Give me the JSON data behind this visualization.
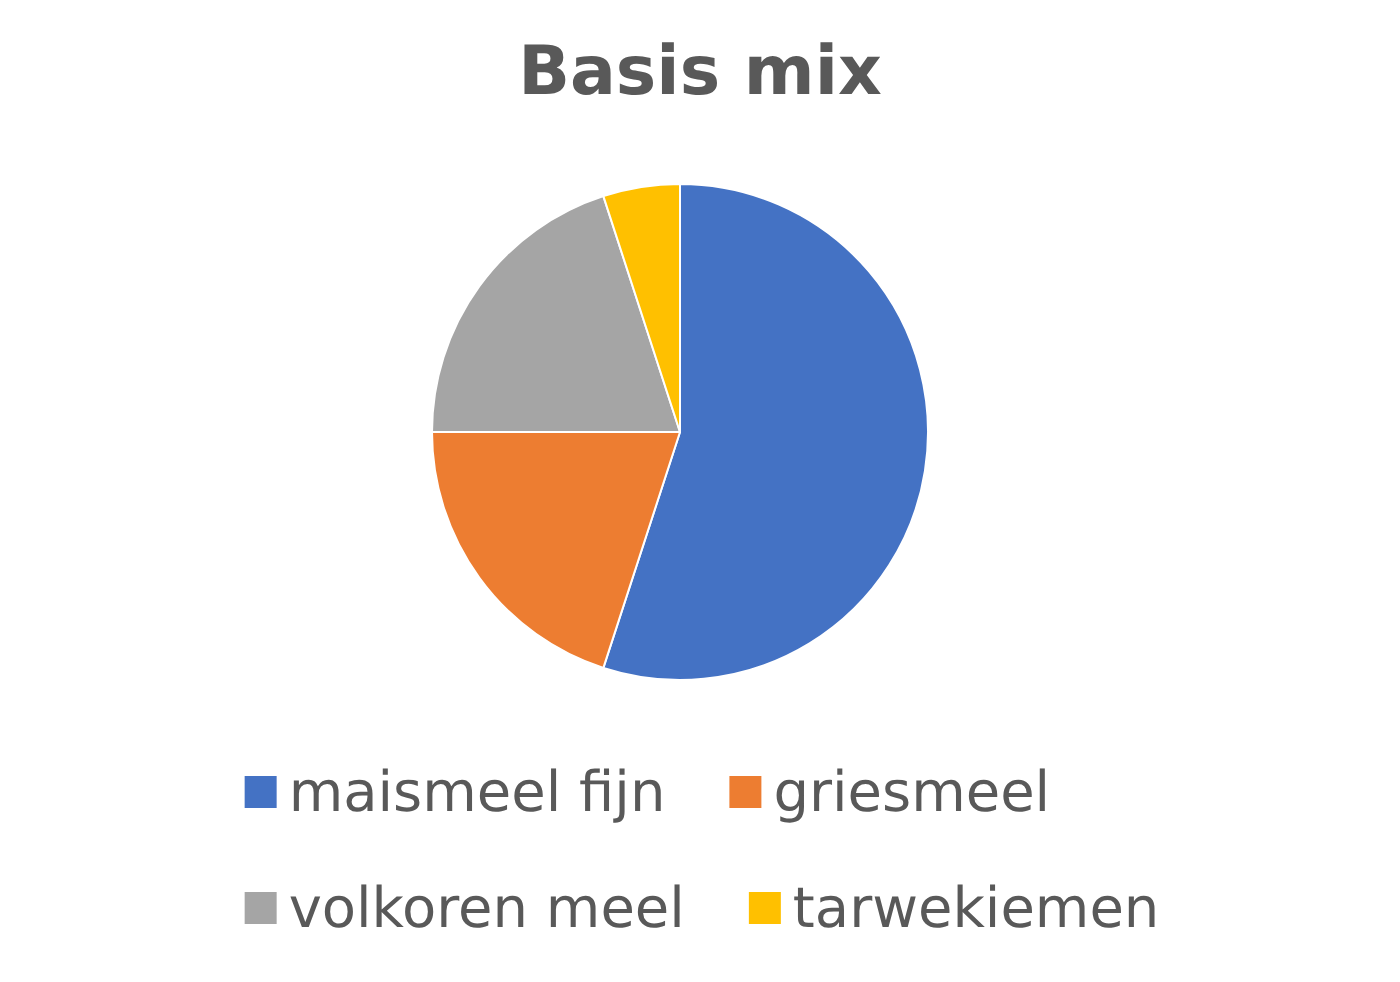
{
  "chart_data": {
    "type": "pie",
    "title": "Basis mix",
    "categories": [
      "maismeel fijn",
      "griesmeel",
      "volkoren meel",
      "tarwekiemen"
    ],
    "values": [
      55,
      20,
      20,
      5
    ],
    "colors": [
      "#4472c4",
      "#ed7d31",
      "#a5a5a5",
      "#ffc000"
    ],
    "legend": "bottom"
  }
}
